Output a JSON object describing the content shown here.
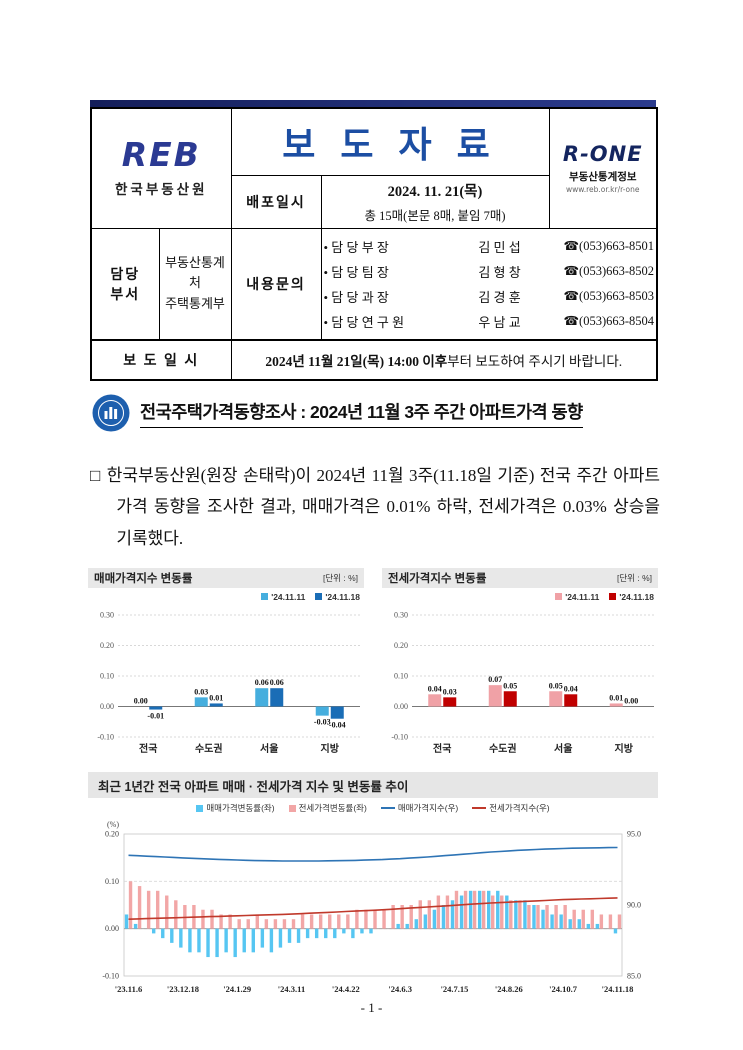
{
  "colors": {
    "topbar": "#1b2a6b",
    "press_title_blue": "#1c4ea3",
    "emblem_blue": "#1d5fae"
  },
  "header": {
    "reb": {
      "brand": "REB",
      "org_name": "한국부동산원"
    },
    "press_title": "보 도 자 료",
    "rone": {
      "brand": "R-ONE",
      "subtitle": "부동산통계정보",
      "url": "www.reb.or.kr/r-one"
    },
    "dispatch": {
      "label": "배포일시",
      "date": "2024. 11. 21(목)",
      "pages": "총 15매(본문 8매, 붙임 7매)"
    },
    "dept": {
      "label": "담당\n부서",
      "value": "부동산통계처\n주택통계부"
    },
    "contact": {
      "label": "내용문의",
      "rows": [
        {
          "title": "• 담 당 부 장",
          "name": "김 민 섭",
          "phone": "☎(053)663-8501"
        },
        {
          "title": "• 담 당 팀 장",
          "name": "김 형 창",
          "phone": "☎(053)663-8502"
        },
        {
          "title": "• 담 당 과 장",
          "name": "김 경 훈",
          "phone": "☎(053)663-8503"
        },
        {
          "title": "• 담 당 연 구 원",
          "name": "우 남 교",
          "phone": "☎(053)663-8504"
        }
      ]
    },
    "embargo": {
      "label": "보 도 일 시",
      "bold": "2024년 11월 21일(목) 14:00 이후",
      "rest": "부터 보도하여 주시기 바랍니다."
    }
  },
  "doc_title": "전국주택가격동향조사 : 2024년 11월 3주 주간 아파트가격 동향",
  "body_text": "□ 한국부동산원(원장 손태락)이 2024년 11월 3주(11.18일 기준) 전국 주간 아파트가격 동향을 조사한 결과, 매매가격은 0.01% 하락, 전세가격은 0.03% 상승을 기록했다.",
  "footer": {
    "page_number": "- 1 -"
  },
  "chart_data": [
    {
      "type": "bar",
      "title": "매매가격지수 변동률",
      "unit_label": "[단위 : %]",
      "categories": [
        "전국",
        "수도권",
        "서울",
        "지방"
      ],
      "series": [
        {
          "name": "'24.11.11",
          "color": "#45aede",
          "values": [
            0.0,
            0.03,
            0.06,
            -0.03
          ]
        },
        {
          "name": "'24.11.18",
          "color": "#1a6db6",
          "values": [
            -0.01,
            0.01,
            0.06,
            -0.04
          ]
        }
      ],
      "ylim": [
        -0.1,
        0.3
      ],
      "yticks": [
        0.3,
        0.2,
        0.1,
        0.0,
        -0.1
      ],
      "grid": true,
      "legend_position": "top-right"
    },
    {
      "type": "bar",
      "title": "전세가격지수 변동률",
      "unit_label": "[단위 : %]",
      "categories": [
        "전국",
        "수도권",
        "서울",
        "지방"
      ],
      "series": [
        {
          "name": "'24.11.11",
          "color": "#f0a1a6",
          "values": [
            0.04,
            0.07,
            0.05,
            0.01
          ]
        },
        {
          "name": "'24.11.18",
          "color": "#c00000",
          "values": [
            0.03,
            0.05,
            0.04,
            0.0
          ]
        }
      ],
      "ylim": [
        -0.1,
        0.3
      ],
      "yticks": [
        0.3,
        0.2,
        0.1,
        0.0,
        -0.1
      ],
      "grid": true,
      "legend_position": "top-right"
    },
    {
      "type": "combo",
      "title": "최근 1년간 전국 아파트 매매 · 전세가격 지수 및 변동률 추이",
      "left_axis_label": "(%)",
      "left_ylim": [
        -0.1,
        0.2
      ],
      "left_yticks": [
        0.2,
        0.1,
        0.0,
        -0.1
      ],
      "right_ylim": [
        85.0,
        95.0
      ],
      "right_yticks": [
        95.0,
        90.0,
        85.0
      ],
      "x_labels": [
        "'23.11.6",
        "'23.12.18",
        "'24.1.29",
        "'24.3.11",
        "'24.4.22",
        "'24.6.3",
        "'24.7.15",
        "'24.8.26",
        "'24.10.7",
        "'24.11.18"
      ],
      "bar_series": [
        {
          "name": "매매가격변동률(좌)",
          "axis": "left",
          "color": "#56c6f2",
          "values": [
            0.03,
            0.01,
            0.0,
            -0.01,
            -0.02,
            -0.03,
            -0.04,
            -0.05,
            -0.05,
            -0.06,
            -0.06,
            -0.05,
            -0.06,
            -0.05,
            -0.05,
            -0.04,
            -0.05,
            -0.04,
            -0.03,
            -0.03,
            -0.02,
            -0.02,
            -0.02,
            -0.02,
            -0.01,
            -0.02,
            -0.01,
            -0.01,
            0.0,
            0.0,
            0.01,
            0.01,
            0.02,
            0.03,
            0.04,
            0.05,
            0.06,
            0.07,
            0.08,
            0.08,
            0.08,
            0.08,
            0.07,
            0.06,
            0.06,
            0.05,
            0.04,
            0.03,
            0.03,
            0.02,
            0.02,
            0.01,
            0.01,
            0.0,
            -0.01
          ]
        },
        {
          "name": "전세가격변동률(좌)",
          "axis": "left",
          "color": "#f2a6a6",
          "values": [
            0.1,
            0.09,
            0.08,
            0.08,
            0.07,
            0.06,
            0.05,
            0.05,
            0.04,
            0.04,
            0.03,
            0.03,
            0.02,
            0.02,
            0.03,
            0.02,
            0.02,
            0.02,
            0.02,
            0.03,
            0.03,
            0.03,
            0.03,
            0.03,
            0.03,
            0.04,
            0.04,
            0.04,
            0.04,
            0.05,
            0.05,
            0.05,
            0.06,
            0.06,
            0.07,
            0.07,
            0.08,
            0.08,
            0.08,
            0.08,
            0.07,
            0.07,
            0.06,
            0.06,
            0.05,
            0.05,
            0.05,
            0.05,
            0.05,
            0.04,
            0.04,
            0.04,
            0.03,
            0.03,
            0.03
          ]
        }
      ],
      "line_series": [
        {
          "name": "매매가격지수(우)",
          "axis": "right",
          "color": "#2e74b5",
          "values": [
            93.5,
            93.47,
            93.44,
            93.41,
            93.38,
            93.35,
            93.32,
            93.29,
            93.26,
            93.23,
            93.21,
            93.19,
            93.17,
            93.15,
            93.13,
            93.12,
            93.11,
            93.1,
            93.1,
            93.1,
            93.1,
            93.1,
            93.11,
            93.12,
            93.13,
            93.14,
            93.16,
            93.18,
            93.2,
            93.23,
            93.26,
            93.3,
            93.34,
            93.38,
            93.43,
            93.48,
            93.53,
            93.58,
            93.63,
            93.68,
            93.73,
            93.77,
            93.81,
            93.85,
            93.88,
            93.91,
            93.94,
            93.96,
            93.98,
            94.0,
            94.01,
            94.02,
            94.03,
            94.04,
            94.05
          ]
        },
        {
          "name": "전세가격지수(우)",
          "axis": "right",
          "color": "#c0392b",
          "values": [
            89.0,
            89.02,
            89.04,
            89.06,
            89.08,
            89.1,
            89.12,
            89.14,
            89.16,
            89.18,
            89.2,
            89.22,
            89.24,
            89.26,
            89.28,
            89.3,
            89.32,
            89.34,
            89.36,
            89.39,
            89.42,
            89.45,
            89.48,
            89.51,
            89.54,
            89.57,
            89.6,
            89.63,
            89.66,
            89.7,
            89.74,
            89.78,
            89.82,
            89.86,
            89.9,
            89.94,
            89.98,
            90.02,
            90.06,
            90.1,
            90.14,
            90.17,
            90.2,
            90.23,
            90.26,
            90.29,
            90.32,
            90.35,
            90.38,
            90.4,
            90.42,
            90.44,
            90.46,
            90.48,
            90.5
          ]
        }
      ],
      "legend_position": "top-center",
      "grid": true
    }
  ]
}
